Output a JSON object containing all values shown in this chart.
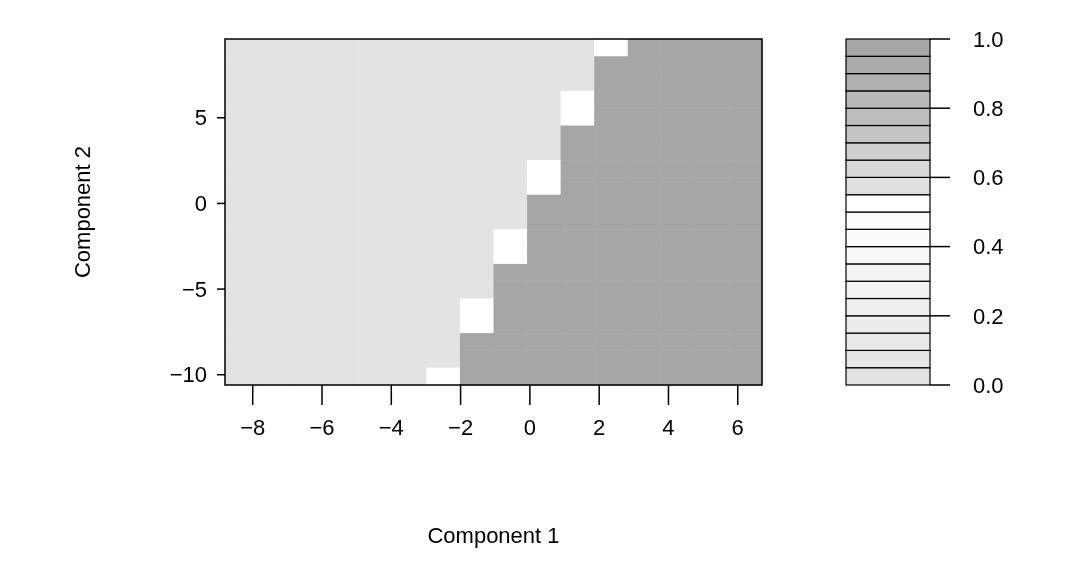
{
  "chart_data": {
    "type": "heatmap",
    "xlabel": "Component 1",
    "ylabel": "Component 2",
    "xlim": [
      -8.8,
      6.7
    ],
    "ylim": [
      -10.6,
      9.6
    ],
    "xticks": [
      {
        "value": -8,
        "label": "−8"
      },
      {
        "value": -6,
        "label": "−6"
      },
      {
        "value": -4,
        "label": "−4"
      },
      {
        "value": -2,
        "label": "−2"
      },
      0,
      2,
      4,
      6
    ],
    "yticks": [
      {
        "value": -10,
        "label": "−10"
      },
      {
        "value": -5,
        "label": "−5"
      },
      0,
      5
    ],
    "clim": [
      0,
      1
    ],
    "cticks": [
      {
        "value": 0,
        "label": "0.0"
      },
      {
        "value": 0.2,
        "label": "0.2"
      },
      {
        "value": 0.4,
        "label": "0.4"
      },
      {
        "value": 0.6,
        "label": "0.6"
      },
      {
        "value": 0.8,
        "label": "0.8"
      },
      {
        "value": 1,
        "label": "1.0"
      }
    ],
    "colors": [
      "#e3e3e3",
      "#e6e6e6",
      "#e9e9e9",
      "#ececec",
      "#efefef",
      "#f2f2f2",
      "#f5f5f5",
      "#f8f8f8",
      "#fbfbfb",
      "#fcfcfc",
      "#ffffff",
      "#e0e0e0",
      "#d9d9d9",
      "#cfcfcf",
      "#c4c4c4",
      "#bdbdbd",
      "#b8b8b8",
      "#b0b0b0",
      "#ababab",
      "#a6a6a6"
    ],
    "cells": [
      [
        0,
        0,
        0,
        0,
        0,
        0,
        0,
        0,
        0,
        0,
        0,
        0.5,
        1,
        1,
        1,
        1
      ],
      [
        0,
        0,
        0,
        0,
        0,
        0,
        0,
        0,
        0,
        0,
        0,
        1,
        1,
        1,
        1,
        1
      ],
      [
        0,
        0,
        0,
        0,
        0,
        0,
        0,
        0,
        0,
        0,
        0,
        1,
        1,
        1,
        1,
        1
      ],
      [
        0,
        0,
        0,
        0,
        0,
        0,
        0,
        0,
        0,
        0,
        0.5,
        1,
        1,
        1,
        1,
        1
      ],
      [
        0,
        0,
        0,
        0,
        0,
        0,
        0,
        0,
        0,
        0,
        0.5,
        1,
        1,
        1,
        1,
        1
      ],
      [
        0,
        0,
        0,
        0,
        0,
        0,
        0,
        0,
        0,
        0,
        1,
        1,
        1,
        1,
        1,
        1
      ],
      [
        0,
        0,
        0,
        0,
        0,
        0,
        0,
        0,
        0,
        0,
        1,
        1,
        1,
        1,
        1,
        1
      ],
      [
        0,
        0,
        0,
        0,
        0,
        0,
        0,
        0,
        0,
        0.5,
        1,
        1,
        1,
        1,
        1,
        1
      ],
      [
        0,
        0,
        0,
        0,
        0,
        0,
        0,
        0,
        0,
        0.5,
        1,
        1,
        1,
        1,
        1,
        1
      ],
      [
        0,
        0,
        0,
        0,
        0,
        0,
        0,
        0,
        0,
        1,
        1,
        1,
        1,
        1,
        1,
        1
      ],
      [
        0,
        0,
        0,
        0,
        0,
        0,
        0,
        0,
        0,
        1,
        1,
        1,
        1,
        1,
        1,
        1
      ],
      [
        0,
        0,
        0,
        0,
        0,
        0,
        0,
        0,
        0.5,
        1,
        1,
        1,
        1,
        1,
        1,
        1
      ],
      [
        0,
        0,
        0,
        0,
        0,
        0,
        0,
        0,
        0.5,
        1,
        1,
        1,
        1,
        1,
        1,
        1
      ],
      [
        0,
        0,
        0,
        0,
        0,
        0,
        0,
        0,
        1,
        1,
        1,
        1,
        1,
        1,
        1,
        1
      ],
      [
        0,
        0,
        0,
        0,
        0,
        0,
        0,
        0,
        1,
        1,
        1,
        1,
        1,
        1,
        1,
        1
      ],
      [
        0,
        0,
        0,
        0,
        0,
        0,
        0,
        0.5,
        1,
        1,
        1,
        1,
        1,
        1,
        1,
        1
      ],
      [
        0,
        0,
        0,
        0,
        0,
        0,
        0,
        0.5,
        1,
        1,
        1,
        1,
        1,
        1,
        1,
        1
      ],
      [
        0,
        0,
        0,
        0,
        0,
        0,
        0,
        1,
        1,
        1,
        1,
        1,
        1,
        1,
        1,
        1
      ],
      [
        0,
        0,
        0,
        0,
        0,
        0,
        0,
        1,
        1,
        1,
        1,
        1,
        1,
        1,
        1,
        1
      ],
      [
        0,
        0,
        0,
        0,
        0,
        0,
        0.5,
        1,
        1,
        1,
        1,
        1,
        1,
        1,
        1,
        1
      ]
    ]
  }
}
